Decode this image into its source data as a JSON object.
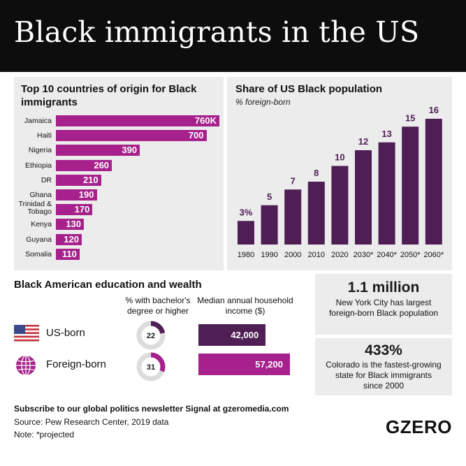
{
  "title": "Black immigrants in the US",
  "colors": {
    "magenta": "#a6218b",
    "purple": "#4f1e55",
    "panel": "#ececec",
    "header": "#0d0d0d"
  },
  "countries": {
    "title": "Top 10 countries of origin for Black immigrants",
    "rows": [
      {
        "label": "Jamaica",
        "value_label": "760K"
      },
      {
        "label": "Haiti",
        "value_label": "700"
      },
      {
        "label": "Nigeria",
        "value_label": "390"
      },
      {
        "label": "Ethiopia",
        "value_label": "260"
      },
      {
        "label": "DR",
        "value_label": "210"
      },
      {
        "label": "Ghana",
        "value_label": "190"
      },
      {
        "label": "Trinidad & Tobago",
        "value_label": "170"
      },
      {
        "label": "Kenya",
        "value_label": "130"
      },
      {
        "label": "Guyana",
        "value_label": "120"
      },
      {
        "label": "Somalia",
        "value_label": "110"
      }
    ]
  },
  "share": {
    "title": "Share of US Black population",
    "subtitle": "% foreign-born",
    "bars": [
      {
        "label": "1980",
        "value_label": "3%"
      },
      {
        "label": "1990",
        "value_label": "5"
      },
      {
        "label": "2000",
        "value_label": "7"
      },
      {
        "label": "2010",
        "value_label": "8"
      },
      {
        "label": "2020",
        "value_label": "10"
      },
      {
        "label": "2030*",
        "value_label": "12"
      },
      {
        "label": "2040*",
        "value_label": "13"
      },
      {
        "label": "2050*",
        "value_label": "15"
      },
      {
        "label": "2060*",
        "value_label": "16"
      }
    ]
  },
  "education": {
    "title": "Black American education and wealth",
    "col_bachelor": "% with bachelor's degree or higher",
    "col_income": "Median annual household income ($)",
    "rows": [
      {
        "label": "US-born",
        "icon": "us-flag-icon",
        "bachelor_label": "22",
        "income_label": "42,000"
      },
      {
        "label": "Foreign-born",
        "icon": "globe-icon",
        "bachelor_label": "31",
        "income_label": "57,200"
      }
    ]
  },
  "stat_nyc": {
    "value": "1.1 million",
    "text": "New York City has largest foreign-born Black population"
  },
  "stat_colorado": {
    "value": "433%",
    "text": "Colorado is the fastest-growing state for Black immigrants since 2000"
  },
  "footer": {
    "subscribe": "Subscribe to our global politics newsletter Signal at gzeromedia.com",
    "source": "Source: Pew Research Center, 2019 data",
    "note": "Note: *projected"
  },
  "logo": "GZERO",
  "chart_data": [
    {
      "type": "bar",
      "orientation": "horizontal",
      "title": "Top 10 countries of origin for Black immigrants",
      "categories": [
        "Jamaica",
        "Haiti",
        "Nigeria",
        "Ethiopia",
        "DR",
        "Ghana",
        "Trinidad & Tobago",
        "Kenya",
        "Guyana",
        "Somalia"
      ],
      "values": [
        760,
        700,
        390,
        260,
        210,
        190,
        170,
        130,
        120,
        110
      ],
      "unit": "K"
    },
    {
      "type": "bar",
      "title": "Share of US Black population",
      "subtitle": "% foreign-born",
      "categories": [
        "1980",
        "1990",
        "2000",
        "2010",
        "2020",
        "2030*",
        "2040*",
        "2050*",
        "2060*"
      ],
      "values": [
        3,
        5,
        7,
        8,
        10,
        12,
        13,
        15,
        16
      ],
      "ylim": [
        0,
        16
      ]
    },
    {
      "type": "pie",
      "title": "% with bachelor's degree or higher",
      "categories": [
        "US-born",
        "Foreign-born"
      ],
      "values": [
        22,
        31
      ]
    },
    {
      "type": "bar",
      "orientation": "horizontal",
      "title": "Median annual household income ($)",
      "categories": [
        "US-born",
        "Foreign-born"
      ],
      "values": [
        42000,
        57200
      ]
    }
  ]
}
